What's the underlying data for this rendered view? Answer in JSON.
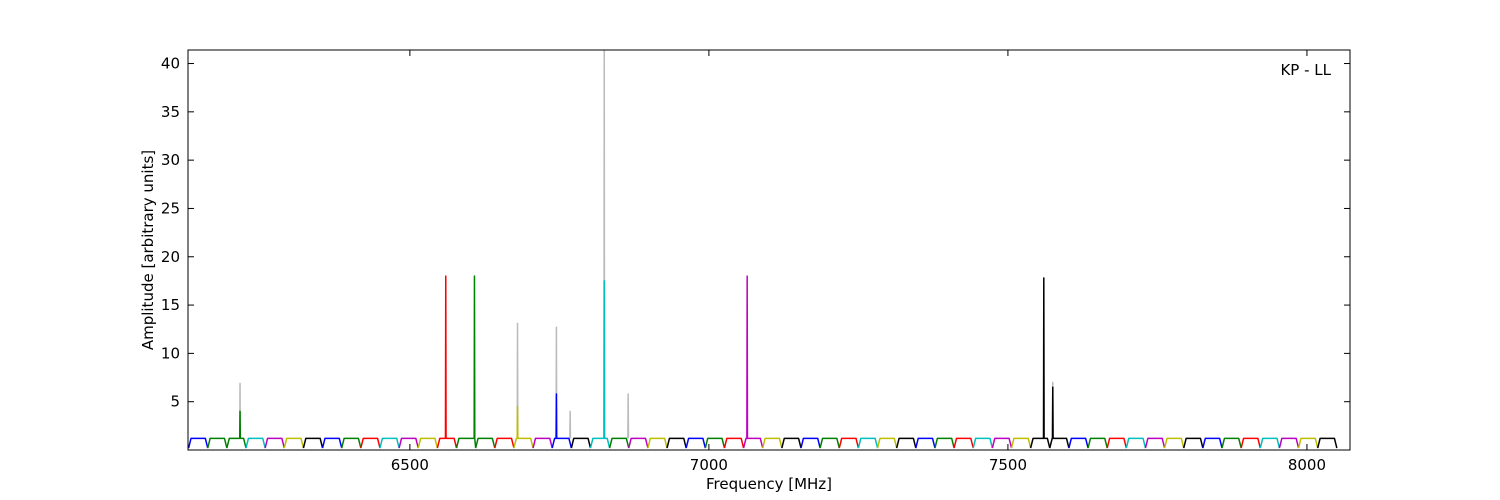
{
  "chart_data": {
    "type": "line",
    "annotation": "KP - LL",
    "x_label": "Frequency [MHz]",
    "y_label": "Amplitude [arbitrary units]",
    "xlim": [
      6129,
      8072
    ],
    "ylim": [
      0,
      41.4
    ],
    "xticks": [
      6500,
      7000,
      7500,
      8000
    ],
    "yticks": [
      5,
      10,
      15,
      20,
      25,
      30,
      35,
      40
    ],
    "grid": false,
    "series": [
      {
        "color": "#bbbbbb",
        "x": [
          6215.5,
          6216,
          6216.5,
          6217,
          6679.5,
          6680,
          6680.5,
          6681,
          6744.5,
          6745,
          6745.5,
          6746,
          6767.5,
          6768,
          6768.5,
          6769,
          6824.5,
          6825,
          6825.5,
          6826,
          6864.5,
          6865,
          6865.5,
          6866,
          7574.5,
          7575,
          7575.5
        ],
        "values": [
          1.2,
          6.9,
          1.2,
          null,
          1.2,
          13.1,
          1.2,
          null,
          1.2,
          12.7,
          1.2,
          null,
          1.2,
          4,
          1.2,
          null,
          1.2,
          42,
          1.2,
          null,
          1.2,
          5.8,
          1.2,
          null,
          1.2,
          7,
          1.2
        ]
      },
      {
        "color": "#0000ff",
        "x": [
          6130,
          6134,
          6158,
          6162
        ],
        "values": [
          0.2,
          1.2,
          1.2,
          0.2
        ]
      },
      {
        "color": "#008000",
        "x": [
          6162,
          6166,
          6190,
          6194
        ],
        "values": [
          0.2,
          1.2,
          1.2,
          0.2
        ]
      },
      {
        "color": "#008000",
        "x": [
          6194,
          6198,
          6215.5,
          6216,
          6216.5,
          6222,
          6226
        ],
        "values": [
          0.2,
          1.2,
          1.2,
          4,
          1.2,
          1.2,
          0.2
        ]
      },
      {
        "color": "#00bfbf",
        "x": [
          6226,
          6230,
          6254,
          6258
        ],
        "values": [
          0.2,
          1.2,
          1.2,
          0.2
        ]
      },
      {
        "color": "#bf00bf",
        "x": [
          6258,
          6262,
          6286,
          6290
        ],
        "values": [
          0.2,
          1.2,
          1.2,
          0.2
        ]
      },
      {
        "color": "#bfbf00",
        "x": [
          6290,
          6294,
          6318,
          6322
        ],
        "values": [
          0.2,
          1.2,
          1.2,
          0.2
        ]
      },
      {
        "color": "#000000",
        "x": [
          6322,
          6326,
          6350,
          6354
        ],
        "values": [
          0.2,
          1.2,
          1.2,
          0.2
        ]
      },
      {
        "color": "#0000ff",
        "x": [
          6354,
          6358,
          6382,
          6386
        ],
        "values": [
          0.2,
          1.2,
          1.2,
          0.2
        ]
      },
      {
        "color": "#008000",
        "x": [
          6386,
          6390,
          6414,
          6418
        ],
        "values": [
          0.2,
          1.2,
          1.2,
          0.2
        ]
      },
      {
        "color": "#ff0000",
        "x": [
          6418,
          6422,
          6446,
          6450
        ],
        "values": [
          0.2,
          1.2,
          1.2,
          0.2
        ]
      },
      {
        "color": "#00bfbf",
        "x": [
          6450,
          6454,
          6478,
          6482
        ],
        "values": [
          0.2,
          1.2,
          1.2,
          0.2
        ]
      },
      {
        "color": "#bf00bf",
        "x": [
          6482,
          6486,
          6510,
          6514
        ],
        "values": [
          0.2,
          1.2,
          1.2,
          0.2
        ]
      },
      {
        "color": "#bfbf00",
        "x": [
          6514,
          6518,
          6542,
          6546
        ],
        "values": [
          0.2,
          1.2,
          1.2,
          0.2
        ]
      },
      {
        "color": "#ff0000",
        "x": [
          6546,
          6550,
          6559.5,
          6560,
          6560.5,
          6574,
          6578
        ],
        "values": [
          0.2,
          1.2,
          1.2,
          18,
          1.2,
          1.2,
          0.2
        ]
      },
      {
        "color": "#008000",
        "x": [
          6578,
          6582,
          6607.5,
          6608,
          6608.5,
          6610
        ],
        "values": [
          0.2,
          1.2,
          1.2,
          18,
          1.2,
          0.2
        ]
      },
      {
        "color": "#008000",
        "x": [
          6610,
          6614,
          6638,
          6642
        ],
        "values": [
          0.2,
          1.2,
          1.2,
          0.2
        ]
      },
      {
        "color": "#ff0000",
        "x": [
          6642,
          6646,
          6670,
          6674
        ],
        "values": [
          0.2,
          1.2,
          1.2,
          0.2
        ]
      },
      {
        "color": "#bfbf00",
        "x": [
          6674,
          6678,
          6679.5,
          6680,
          6680.5,
          6702,
          6706
        ],
        "values": [
          0.2,
          1.2,
          1.2,
          4.5,
          1.2,
          1.2,
          0.2
        ]
      },
      {
        "color": "#bf00bf",
        "x": [
          6706,
          6710,
          6734,
          6738
        ],
        "values": [
          0.2,
          1.2,
          1.2,
          0.2
        ]
      },
      {
        "color": "#0000ff",
        "x": [
          6738,
          6742,
          6744.5,
          6745,
          6745.5,
          6766,
          6770
        ],
        "values": [
          0.2,
          1.2,
          1.2,
          5.8,
          1.2,
          1.2,
          0.2
        ]
      },
      {
        "color": "#000000",
        "x": [
          6770,
          6774,
          6798,
          6802
        ],
        "values": [
          0.2,
          1.2,
          1.2,
          0.2
        ]
      },
      {
        "color": "#00bfbf",
        "x": [
          6802,
          6806,
          6824.5,
          6825,
          6825.5,
          6830,
          6834
        ],
        "values": [
          0.2,
          1.2,
          1.2,
          17.5,
          1.2,
          1.2,
          0.2
        ]
      },
      {
        "color": "#008000",
        "x": [
          6834,
          6838,
          6862,
          6866
        ],
        "values": [
          0.2,
          1.2,
          1.2,
          0.2
        ]
      },
      {
        "color": "#bf00bf",
        "x": [
          6866,
          6870,
          6894,
          6898
        ],
        "values": [
          0.2,
          1.2,
          1.2,
          0.2
        ]
      },
      {
        "color": "#bfbf00",
        "x": [
          6898,
          6902,
          6926,
          6930
        ],
        "values": [
          0.2,
          1.2,
          1.2,
          0.2
        ]
      },
      {
        "color": "#000000",
        "x": [
          6930,
          6934,
          6958,
          6962
        ],
        "values": [
          0.2,
          1.2,
          1.2,
          0.2
        ]
      },
      {
        "color": "#0000ff",
        "x": [
          6962,
          6966,
          6990,
          6994
        ],
        "values": [
          0.2,
          1.2,
          1.2,
          0.2
        ]
      },
      {
        "color": "#008000",
        "x": [
          6994,
          6998,
          7022,
          7026
        ],
        "values": [
          0.2,
          1.2,
          1.2,
          0.2
        ]
      },
      {
        "color": "#ff0000",
        "x": [
          7026,
          7030,
          7054,
          7058
        ],
        "values": [
          0.2,
          1.2,
          1.2,
          0.2
        ]
      },
      {
        "color": "#bf00bf",
        "x": [
          7058,
          7062,
          7063.5,
          7064,
          7064.5,
          7086,
          7090
        ],
        "values": [
          0.2,
          1.2,
          1.2,
          18,
          1.2,
          1.2,
          0.2
        ]
      },
      {
        "color": "#bfbf00",
        "x": [
          7090,
          7094,
          7118,
          7122
        ],
        "values": [
          0.2,
          1.2,
          1.2,
          0.2
        ]
      },
      {
        "color": "#000000",
        "x": [
          7122,
          7126,
          7150,
          7154
        ],
        "values": [
          0.2,
          1.2,
          1.2,
          0.2
        ]
      },
      {
        "color": "#0000ff",
        "x": [
          7154,
          7158,
          7182,
          7186
        ],
        "values": [
          0.2,
          1.2,
          1.2,
          0.2
        ]
      },
      {
        "color": "#008000",
        "x": [
          7186,
          7190,
          7214,
          7218
        ],
        "values": [
          0.2,
          1.2,
          1.2,
          0.2
        ]
      },
      {
        "color": "#ff0000",
        "x": [
          7218,
          7222,
          7246,
          7250
        ],
        "values": [
          0.2,
          1.2,
          1.2,
          0.2
        ]
      },
      {
        "color": "#00bfbf",
        "x": [
          7250,
          7254,
          7278,
          7282
        ],
        "values": [
          0.2,
          1.2,
          1.2,
          0.2
        ]
      },
      {
        "color": "#bfbf00",
        "x": [
          7282,
          7286,
          7310,
          7314
        ],
        "values": [
          0.2,
          1.2,
          1.2,
          0.2
        ]
      },
      {
        "color": "#000000",
        "x": [
          7314,
          7318,
          7342,
          7346
        ],
        "values": [
          0.2,
          1.2,
          1.2,
          0.2
        ]
      },
      {
        "color": "#0000ff",
        "x": [
          7346,
          7350,
          7374,
          7378
        ],
        "values": [
          0.2,
          1.2,
          1.2,
          0.2
        ]
      },
      {
        "color": "#008000",
        "x": [
          7378,
          7382,
          7406,
          7410
        ],
        "values": [
          0.2,
          1.2,
          1.2,
          0.2
        ]
      },
      {
        "color": "#ff0000",
        "x": [
          7410,
          7414,
          7438,
          7442
        ],
        "values": [
          0.2,
          1.2,
          1.2,
          0.2
        ]
      },
      {
        "color": "#00bfbf",
        "x": [
          7442,
          7446,
          7470,
          7474
        ],
        "values": [
          0.2,
          1.2,
          1.2,
          0.2
        ]
      },
      {
        "color": "#bf00bf",
        "x": [
          7474,
          7478,
          7502,
          7506
        ],
        "values": [
          0.2,
          1.2,
          1.2,
          0.2
        ]
      },
      {
        "color": "#bfbf00",
        "x": [
          7506,
          7510,
          7534,
          7538
        ],
        "values": [
          0.2,
          1.2,
          1.2,
          0.2
        ]
      },
      {
        "color": "#000000",
        "x": [
          7538,
          7542,
          7559.5,
          7560,
          7560.5,
          7566,
          7570
        ],
        "values": [
          0.2,
          1.2,
          1.2,
          17.8,
          1.2,
          1.2,
          0.2
        ]
      },
      {
        "color": "#000000",
        "x": [
          7570,
          7574,
          7574.5,
          7575,
          7575.5,
          7598,
          7602
        ],
        "values": [
          0.2,
          1.2,
          1.2,
          6.5,
          1.2,
          1.2,
          0.2
        ]
      },
      {
        "color": "#0000ff",
        "x": [
          7602,
          7606,
          7630,
          7634
        ],
        "values": [
          0.2,
          1.2,
          1.2,
          0.2
        ]
      },
      {
        "color": "#008000",
        "x": [
          7634,
          7638,
          7662,
          7666
        ],
        "values": [
          0.2,
          1.2,
          1.2,
          0.2
        ]
      },
      {
        "color": "#ff0000",
        "x": [
          7666,
          7670,
          7694,
          7698
        ],
        "values": [
          0.2,
          1.2,
          1.2,
          0.2
        ]
      },
      {
        "color": "#00bfbf",
        "x": [
          7698,
          7702,
          7726,
          7730
        ],
        "values": [
          0.2,
          1.2,
          1.2,
          0.2
        ]
      },
      {
        "color": "#bf00bf",
        "x": [
          7730,
          7734,
          7758,
          7762
        ],
        "values": [
          0.2,
          1.2,
          1.2,
          0.2
        ]
      },
      {
        "color": "#bfbf00",
        "x": [
          7762,
          7766,
          7790,
          7794
        ],
        "values": [
          0.2,
          1.2,
          1.2,
          0.2
        ]
      },
      {
        "color": "#000000",
        "x": [
          7794,
          7798,
          7822,
          7826
        ],
        "values": [
          0.2,
          1.2,
          1.2,
          0.2
        ]
      },
      {
        "color": "#0000ff",
        "x": [
          7826,
          7830,
          7854,
          7858
        ],
        "values": [
          0.2,
          1.2,
          1.2,
          0.2
        ]
      },
      {
        "color": "#008000",
        "x": [
          7858,
          7862,
          7886,
          7890
        ],
        "values": [
          0.2,
          1.2,
          1.2,
          0.2
        ]
      },
      {
        "color": "#ff0000",
        "x": [
          7890,
          7894,
          7918,
          7922
        ],
        "values": [
          0.2,
          1.2,
          1.2,
          0.2
        ]
      },
      {
        "color": "#00bfbf",
        "x": [
          7922,
          7926,
          7950,
          7954
        ],
        "values": [
          0.2,
          1.2,
          1.2,
          0.2
        ]
      },
      {
        "color": "#bf00bf",
        "x": [
          7954,
          7958,
          7982,
          7986
        ],
        "values": [
          0.2,
          1.2,
          1.2,
          0.2
        ]
      },
      {
        "color": "#bfbf00",
        "x": [
          7986,
          7990,
          8014,
          8018
        ],
        "values": [
          0.2,
          1.2,
          1.2,
          0.2
        ]
      },
      {
        "color": "#000000",
        "x": [
          8018,
          8022,
          8046,
          8050
        ],
        "values": [
          0.2,
          1.2,
          1.2,
          0.2
        ]
      }
    ]
  }
}
